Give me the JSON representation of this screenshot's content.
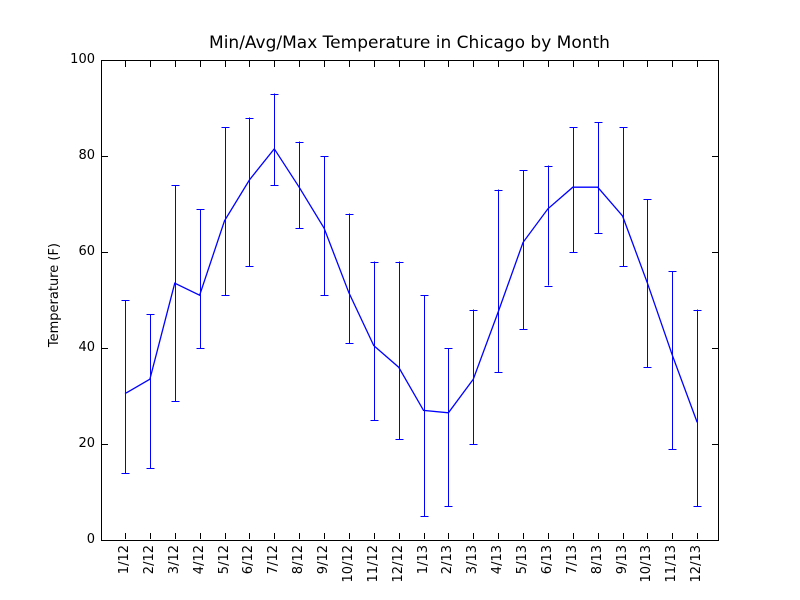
{
  "chart_data": {
    "type": "line",
    "title": "Min/Avg/Max Temperature in Chicago by Month",
    "xlabel": "",
    "ylabel": "Temperature (F)",
    "ylim": [
      0,
      100
    ],
    "yticks": [
      0,
      20,
      40,
      60,
      80,
      100
    ],
    "grid": false,
    "legend": "none",
    "line_color": "#0000ff",
    "axis_color": "#000000",
    "error_bars": "min-max range with caps, avg connected by line",
    "categories": [
      "1/12",
      "2/12",
      "3/12",
      "4/12",
      "5/12",
      "6/12",
      "7/12",
      "8/12",
      "9/12",
      "10/12",
      "11/12",
      "12/12",
      "1/13",
      "2/13",
      "3/13",
      "4/13",
      "5/13",
      "6/13",
      "7/13",
      "8/13",
      "9/13",
      "10/13",
      "11/13",
      "12/13"
    ],
    "series": [
      {
        "name": "min",
        "values": [
          14,
          15,
          29,
          40,
          51,
          57,
          74,
          65,
          51,
          41,
          25,
          21,
          5,
          7,
          20,
          35,
          44,
          53,
          60,
          64,
          57,
          36,
          19,
          7
        ]
      },
      {
        "name": "avg",
        "values": [
          30.5,
          33.5,
          53.5,
          51,
          66.5,
          75,
          81.5,
          73.5,
          65,
          51.5,
          40.5,
          36,
          27,
          26.5,
          33.5,
          47.5,
          62,
          69,
          73.5,
          73.5,
          67.5,
          53.5,
          38.5,
          24.5
        ]
      },
      {
        "name": "max",
        "values": [
          50,
          47,
          74,
          69,
          86,
          88,
          93,
          83,
          80,
          68,
          58,
          58,
          51,
          40,
          48,
          73,
          77,
          78,
          86,
          87,
          86,
          71,
          56,
          48
        ]
      }
    ]
  }
}
